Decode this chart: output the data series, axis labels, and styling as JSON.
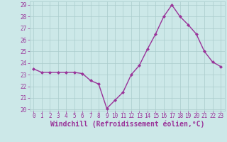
{
  "x": [
    0,
    1,
    2,
    3,
    4,
    5,
    6,
    7,
    8,
    9,
    10,
    11,
    12,
    13,
    14,
    15,
    16,
    17,
    18,
    19,
    20,
    21,
    22,
    23
  ],
  "y": [
    23.5,
    23.2,
    23.2,
    23.2,
    23.2,
    23.2,
    23.1,
    22.5,
    22.2,
    20.1,
    20.8,
    21.5,
    23.0,
    23.8,
    25.2,
    26.5,
    28.0,
    29.0,
    28.0,
    27.3,
    26.5,
    25.0,
    24.1,
    23.7
  ],
  "line_color": "#993399",
  "marker": "D",
  "marker_size": 2,
  "bg_color": "#cce8e8",
  "grid_color": "#aacccc",
  "xlabel": "Windchill (Refroidissement éolien,°C)",
  "ylabel": "",
  "title": "",
  "ylim": [
    20,
    29
  ],
  "yticks": [
    20,
    21,
    22,
    23,
    24,
    25,
    26,
    27,
    28,
    29
  ],
  "xticks": [
    0,
    1,
    2,
    3,
    4,
    5,
    6,
    7,
    8,
    9,
    10,
    11,
    12,
    13,
    14,
    15,
    16,
    17,
    18,
    19,
    20,
    21,
    22,
    23
  ],
  "tick_color": "#993399",
  "label_color": "#993399",
  "tick_fontsize": 5.5,
  "xlabel_fontsize": 7.0,
  "linewidth": 1.0
}
